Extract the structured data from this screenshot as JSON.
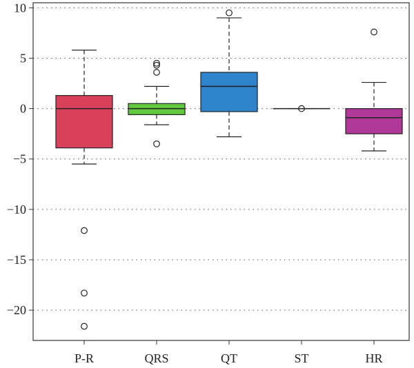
{
  "chart_data": {
    "type": "boxplot",
    "title": "",
    "xlabel": "",
    "ylabel": "",
    "ylim": [
      -23,
      10.5
    ],
    "yticks": [
      10,
      5,
      0,
      -5,
      -10,
      -15,
      -20
    ],
    "ytick_labels": [
      "10",
      "5",
      "0",
      "−5",
      "−10",
      "−15",
      "−20"
    ],
    "grid": "horizontal dotted",
    "categories": [
      "P-R",
      "QRS",
      "QT",
      "ST",
      "HR"
    ],
    "series": [
      {
        "category": "P-R",
        "color": "#d9405a",
        "whisker_low": -5.5,
        "q1": -3.9,
        "median": 0.0,
        "q3": 1.3,
        "whisker_high": 5.8,
        "outliers": [
          -12.1,
          -18.3,
          -21.6
        ]
      },
      {
        "category": "QRS",
        "color": "#63c93f",
        "whisker_low": -1.6,
        "q1": -0.6,
        "median": 0.0,
        "q3": 0.5,
        "whisker_high": 2.2,
        "outliers": [
          4.5,
          4.3,
          3.6,
          -3.5
        ]
      },
      {
        "category": "QT",
        "color": "#2e83cc",
        "whisker_low": -2.8,
        "q1": -0.3,
        "median": 2.2,
        "q3": 3.6,
        "whisker_high": 9.0,
        "outliers": [
          9.5
        ]
      },
      {
        "category": "ST",
        "color": "#9a9a9a",
        "whisker_low": 0.0,
        "q1": 0.0,
        "median": 0.0,
        "q3": 0.0,
        "whisker_high": 0.0,
        "outliers": [
          0.0
        ]
      },
      {
        "category": "HR",
        "color": "#b03896",
        "whisker_low": -4.2,
        "q1": -2.5,
        "median": -0.9,
        "q3": 0.0,
        "whisker_high": 2.6,
        "outliers": [
          7.6
        ]
      }
    ]
  }
}
